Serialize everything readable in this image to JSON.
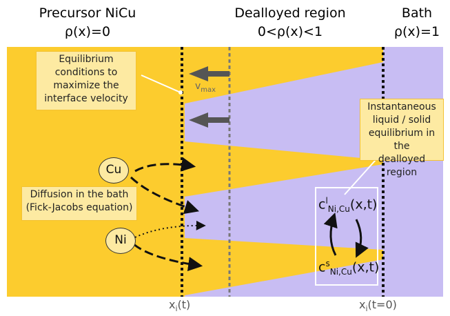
{
  "headers": {
    "precursor": {
      "title": "Precursor NiCu",
      "condition": "ρ(x)=0"
    },
    "dealloyed": {
      "title": "Dealloyed region",
      "condition": "0<ρ(x)<1"
    },
    "bath": {
      "title": "Bath",
      "condition": "ρ(x)=1"
    }
  },
  "notes": {
    "equilibrium": [
      "Equilibrium",
      "conditions to",
      "maximize the",
      "interface velocity"
    ],
    "instantaneous": [
      "Instantaneous",
      "liquid / solid",
      "equilibrium in the",
      "dealloyed region"
    ],
    "diffusion": [
      "Diffusion in the bath",
      "(Fick-Jacobs equation)"
    ]
  },
  "species": {
    "cu": "Cu",
    "ni": "Ni"
  },
  "velocity": {
    "symbol": "v",
    "subscript": "max"
  },
  "concentrations": {
    "liquid": {
      "base": "c",
      "sup": "l",
      "sub": "Ni,Cu",
      "args": "(x,t)"
    },
    "solid": {
      "base": "c",
      "sup": "s",
      "sub": "Ni,Cu",
      "args": "(x,t)"
    }
  },
  "positions": {
    "interface": {
      "base": "x",
      "sub": "i",
      "args": "(t)"
    },
    "initial": {
      "base": "x",
      "sub": "i",
      "args": "(t=0)"
    }
  },
  "colors": {
    "precursor": "#fccc2e",
    "bath": "#c8bdf3",
    "note_fill": "#fdeaa2",
    "note_border": "#f3c232",
    "arrow": "#555555"
  }
}
